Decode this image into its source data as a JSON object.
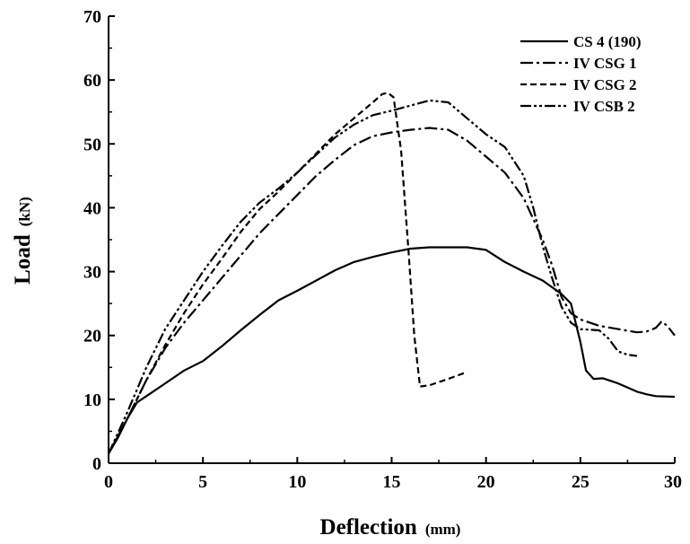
{
  "chart_data": {
    "type": "line",
    "title": "",
    "xlabel": "Deflection",
    "xunit": "(mm)",
    "ylabel": "Load",
    "yunit": "(kN)",
    "xlim": [
      0,
      30
    ],
    "ylim": [
      0,
      70
    ],
    "xticks": [
      "0",
      "5",
      "10",
      "15",
      "20",
      "25",
      "30"
    ],
    "yticks": [
      "0",
      "10",
      "20",
      "30",
      "40",
      "50",
      "60",
      "70"
    ],
    "grid": false,
    "legend_position": "top-right",
    "series": [
      {
        "name": "CS 4 (190)",
        "dash": "solid",
        "points": [
          [
            0,
            1.5
          ],
          [
            0.5,
            4
          ],
          [
            1,
            7
          ],
          [
            1.5,
            9.5
          ],
          [
            2,
            10.5
          ],
          [
            3,
            12.5
          ],
          [
            4,
            14.5
          ],
          [
            5,
            16
          ],
          [
            6,
            18.3
          ],
          [
            7,
            20.8
          ],
          [
            8,
            23.2
          ],
          [
            9,
            25.5
          ],
          [
            10,
            27
          ],
          [
            11,
            28.6
          ],
          [
            12,
            30.2
          ],
          [
            13,
            31.5
          ],
          [
            14,
            32.3
          ],
          [
            15,
            33
          ],
          [
            16,
            33.6
          ],
          [
            17,
            33.8
          ],
          [
            18,
            33.8
          ],
          [
            19,
            33.8
          ],
          [
            20,
            33.4
          ],
          [
            21,
            31.5
          ],
          [
            22,
            30
          ],
          [
            23,
            28.6
          ],
          [
            24,
            26.5
          ],
          [
            24.5,
            25
          ],
          [
            25,
            19
          ],
          [
            25.3,
            14.5
          ],
          [
            25.7,
            13.2
          ],
          [
            26.2,
            13.3
          ],
          [
            27,
            12.5
          ],
          [
            28,
            11.2
          ],
          [
            28.5,
            10.8
          ],
          [
            29,
            10.5
          ],
          [
            30,
            10.4
          ]
        ]
      },
      {
        "name": "IV CSG 1",
        "dash": "dash-dot",
        "points": [
          [
            0,
            1.5
          ],
          [
            1,
            7
          ],
          [
            2,
            13
          ],
          [
            3,
            18
          ],
          [
            4,
            22
          ],
          [
            5,
            25.5
          ],
          [
            6,
            29
          ],
          [
            7,
            32.5
          ],
          [
            8,
            36
          ],
          [
            9,
            39
          ],
          [
            10,
            42
          ],
          [
            11,
            45
          ],
          [
            12,
            47.5
          ],
          [
            13,
            49.8
          ],
          [
            14,
            51.2
          ],
          [
            15,
            51.8
          ],
          [
            16,
            52.2
          ],
          [
            17,
            52.5
          ],
          [
            18,
            52.2
          ],
          [
            19,
            50.5
          ],
          [
            20,
            48
          ],
          [
            21,
            45.5
          ],
          [
            22,
            41.5
          ],
          [
            23,
            35
          ],
          [
            23.5,
            31
          ],
          [
            24,
            26
          ],
          [
            24.5,
            23.5
          ],
          [
            25,
            22.5
          ],
          [
            26,
            21.5
          ],
          [
            27,
            21
          ],
          [
            28,
            20.5
          ],
          [
            28.5,
            20.6
          ],
          [
            29,
            21.2
          ],
          [
            29.3,
            22.2
          ],
          [
            29.6,
            21.5
          ],
          [
            30,
            20
          ]
        ]
      },
      {
        "name": "IV CSG 2",
        "dash": "dashed",
        "points": [
          [
            0,
            1.5
          ],
          [
            1,
            7
          ],
          [
            2,
            13
          ],
          [
            3,
            18.5
          ],
          [
            4,
            23.5
          ],
          [
            5,
            28
          ],
          [
            6,
            32
          ],
          [
            7,
            36.2
          ],
          [
            8,
            39.8
          ],
          [
            9,
            42.5
          ],
          [
            10,
            45.5
          ],
          [
            11,
            48.5
          ],
          [
            12,
            51.5
          ],
          [
            13,
            54
          ],
          [
            14,
            56.5
          ],
          [
            14.5,
            57.8
          ],
          [
            14.8,
            58
          ],
          [
            15.1,
            57.3
          ],
          [
            15.5,
            49
          ],
          [
            15.9,
            33
          ],
          [
            16.2,
            20
          ],
          [
            16.5,
            12
          ],
          [
            17,
            12.2
          ],
          [
            18,
            13.2
          ],
          [
            19,
            14.3
          ]
        ]
      },
      {
        "name": "IV CSB 2",
        "dash": "dash-dot-dot",
        "points": [
          [
            0,
            1.5
          ],
          [
            1,
            8
          ],
          [
            2,
            15
          ],
          [
            3,
            21
          ],
          [
            4,
            25.5
          ],
          [
            5,
            30
          ],
          [
            6,
            34
          ],
          [
            7,
            37.8
          ],
          [
            8,
            40.8
          ],
          [
            9,
            43
          ],
          [
            10,
            45.5
          ],
          [
            11,
            48.3
          ],
          [
            12,
            51
          ],
          [
            13,
            53
          ],
          [
            14,
            54.5
          ],
          [
            15,
            55.2
          ],
          [
            16,
            56
          ],
          [
            17,
            56.8
          ],
          [
            18,
            56.5
          ],
          [
            19,
            54
          ],
          [
            20,
            51.5
          ],
          [
            21,
            49.5
          ],
          [
            22,
            45
          ],
          [
            22.5,
            40
          ],
          [
            23,
            34
          ],
          [
            23.5,
            29
          ],
          [
            24,
            24.5
          ],
          [
            24.5,
            22
          ],
          [
            25,
            21
          ],
          [
            26,
            20.8
          ],
          [
            26.5,
            19.5
          ],
          [
            27,
            17.5
          ],
          [
            27.5,
            17
          ],
          [
            28,
            16.8
          ]
        ]
      }
    ]
  }
}
